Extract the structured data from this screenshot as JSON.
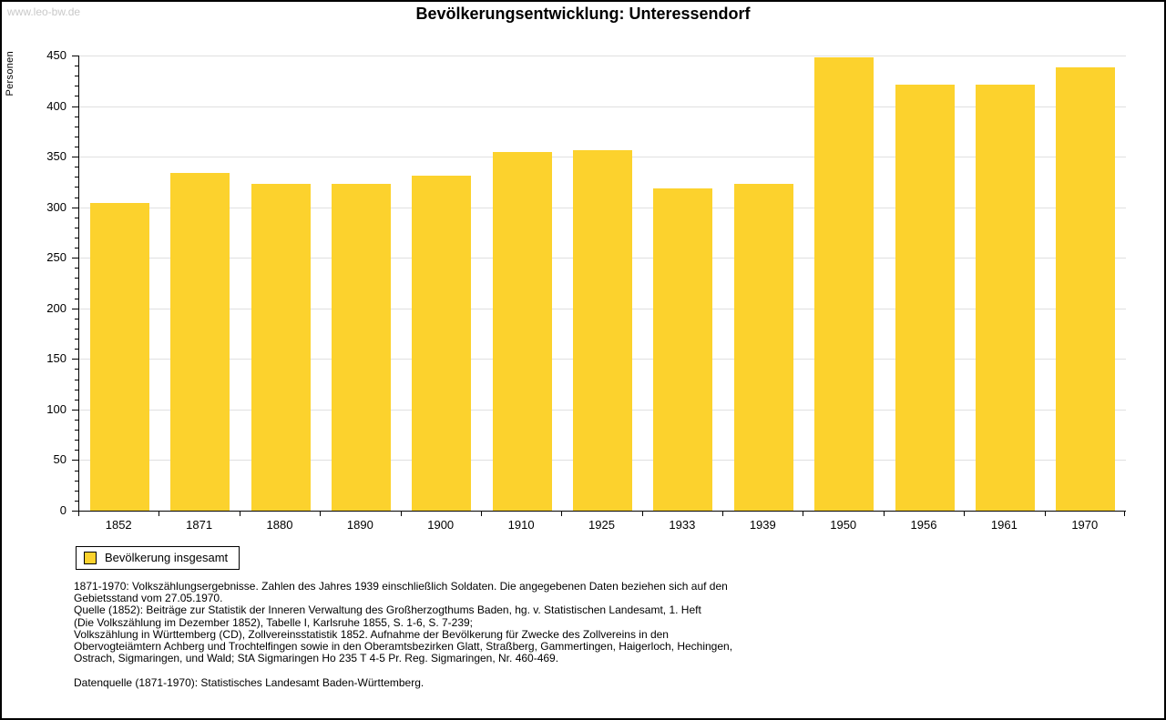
{
  "watermark": "www.leo-bw.de",
  "title": "Bevölkerungsentwicklung: Unteressendorf",
  "chart_data": {
    "type": "bar",
    "title": "Bevölkerungsentwicklung: Unteressendorf",
    "xlabel": "",
    "ylabel": "Personen",
    "categories": [
      "1852",
      "1871",
      "1880",
      "1890",
      "1900",
      "1910",
      "1925",
      "1933",
      "1939",
      "1950",
      "1956",
      "1961",
      "1970"
    ],
    "values": [
      304,
      334,
      323,
      323,
      331,
      355,
      356,
      319,
      323,
      448,
      421,
      421,
      438
    ],
    "series_name": "Bevölkerung insgesamt",
    "ylim": [
      0,
      450
    ],
    "y_major_tick_step": 50,
    "y_minor_tick_step": 10,
    "grid": true,
    "legend_position": "bottom-left",
    "bar_color": "#FCD22D"
  },
  "legend": {
    "label": "Bevölkerung insgesamt"
  },
  "footnotes": {
    "lines": [
      "1871-1970: Volkszählungsergebnisse. Zahlen des Jahres 1939 einschließlich Soldaten. Die angegebenen Daten beziehen sich auf den",
      "Gebietsstand vom 27.05.1970.",
      "Quelle (1852): Beiträge zur Statistik der Inneren Verwaltung des Großherzogthums Baden, hg. v. Statistischen Landesamt, 1. Heft",
      "(Die Volkszählung im Dezember 1852), Tabelle I, Karlsruhe 1855, S. 1-6, S. 7-239;",
      "Volkszählung in Württemberg (CD), Zollvereinsstatistik 1852. Aufnahme der Bevölkerung für Zwecke des Zollvereins in den",
      "Obervogteiämtern Achberg und Trochtelfingen sowie in den Oberamtsbezirken Glatt, Straßberg, Gammertingen, Haigerloch, Hechingen,",
      "Ostrach, Sigmaringen, und Wald; StA Sigmaringen Ho 235 T 4-5 Pr. Reg. Sigmaringen, Nr. 460-469."
    ],
    "datasource": "Datenquelle (1871-1970): Statistisches Landesamt Baden-Württemberg."
  },
  "colors": {
    "bar": "#FCD22D",
    "gridline": "#E0E0E0",
    "axis": "#000000",
    "watermark": "#C9C9C9",
    "text": "#000000"
  }
}
